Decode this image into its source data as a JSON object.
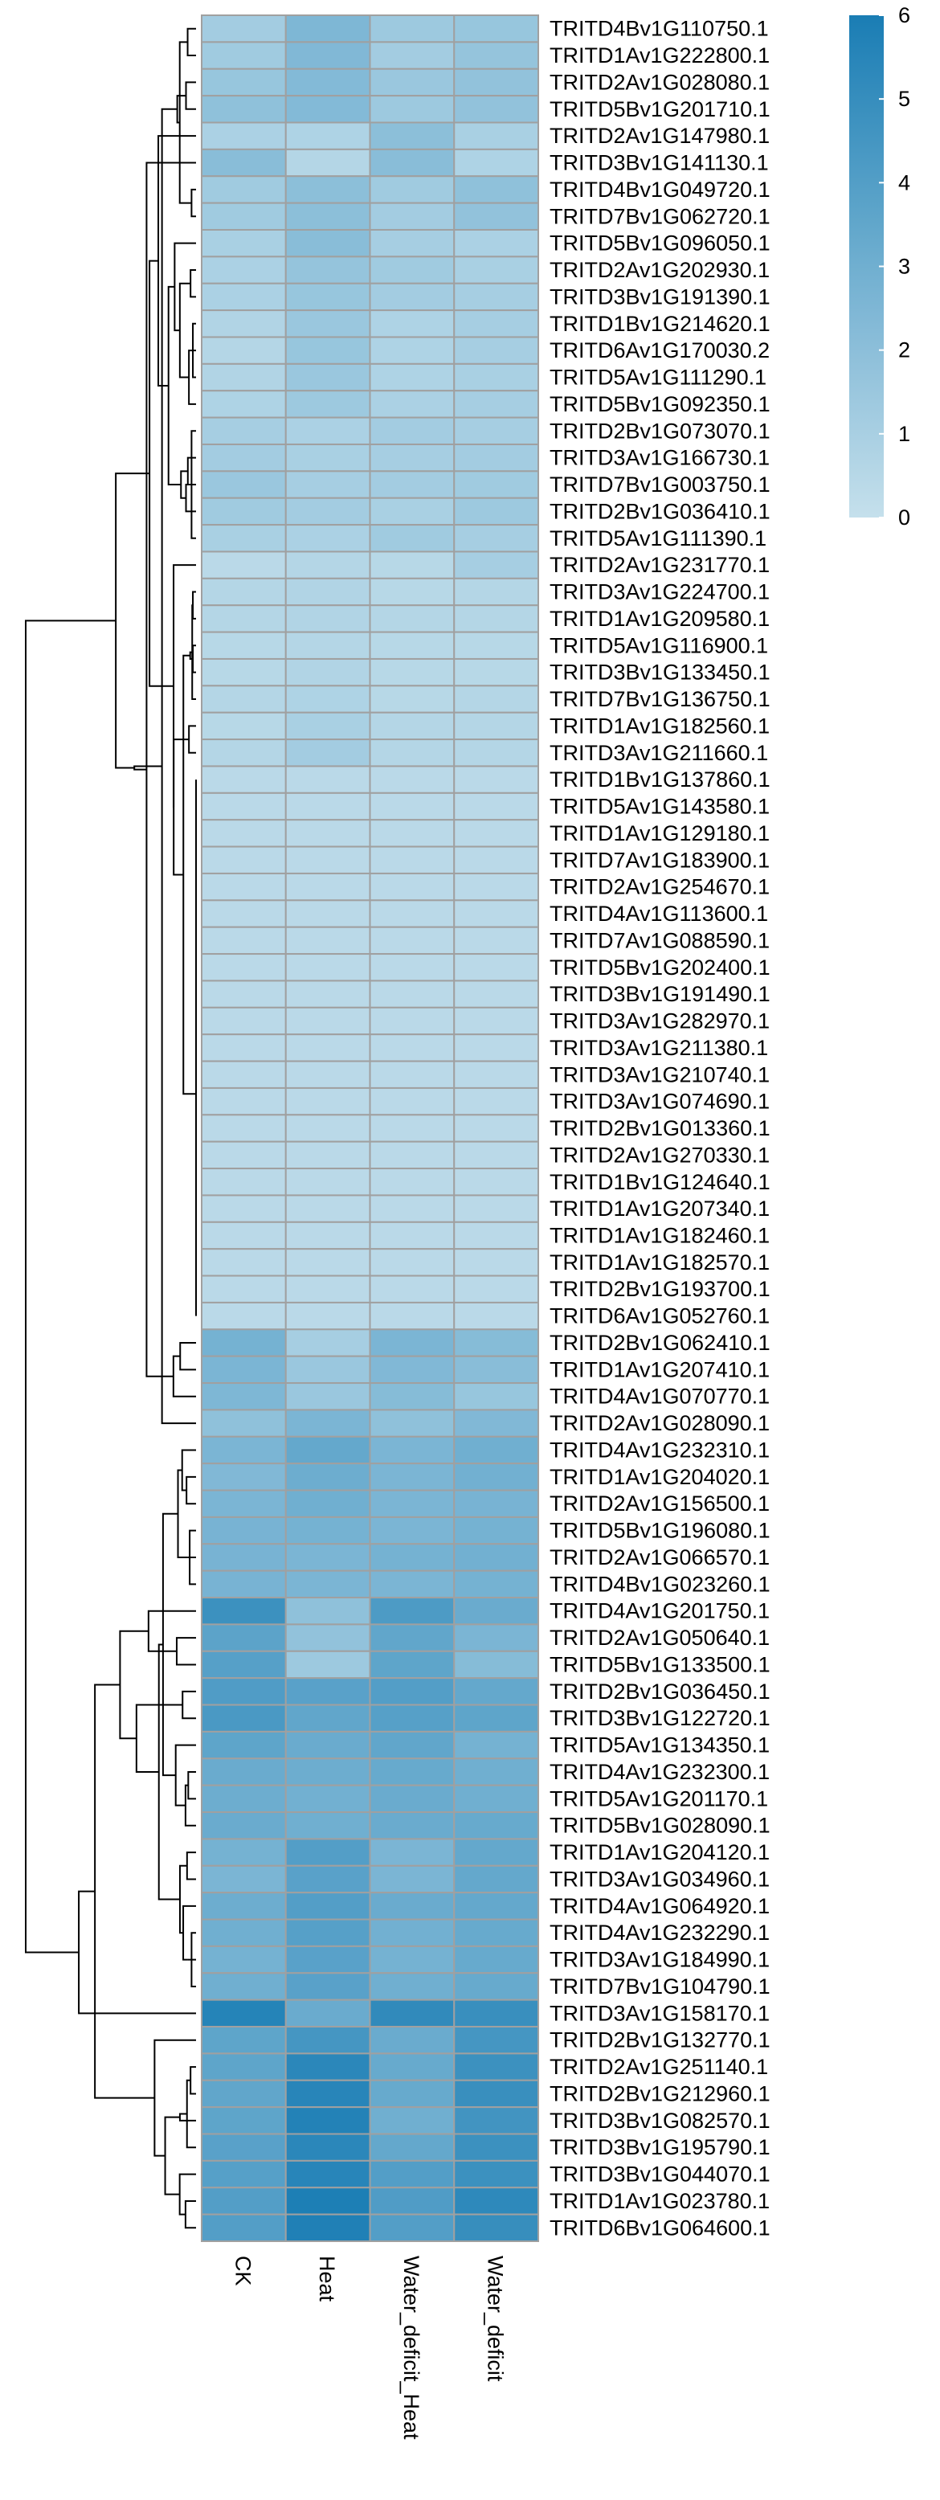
{
  "chart_data": {
    "type": "heatmap",
    "title": "",
    "xlabel": "",
    "ylabel": "",
    "columns": [
      "CK",
      "Heat",
      "Water_deficit_Heat",
      "Water_deficit"
    ],
    "rows": [
      "TRITD4Bv1G110750.1",
      "TRITD1Av1G222800.1",
      "TRITD2Av1G028080.1",
      "TRITD5Bv1G201710.1",
      "TRITD2Av1G147980.1",
      "TRITD3Bv1G141130.1",
      "TRITD4Bv1G049720.1",
      "TRITD7Bv1G062720.1",
      "TRITD5Bv1G096050.1",
      "TRITD2Av1G202930.1",
      "TRITD3Bv1G191390.1",
      "TRITD1Bv1G214620.1",
      "TRITD6Av1G170030.2",
      "TRITD5Av1G111290.1",
      "TRITD5Bv1G092350.1",
      "TRITD2Bv1G073070.1",
      "TRITD3Av1G166730.1",
      "TRITD7Bv1G003750.1",
      "TRITD2Bv1G036410.1",
      "TRITD5Av1G111390.1",
      "TRITD2Av1G231770.1",
      "TRITD3Av1G224700.1",
      "TRITD1Av1G209580.1",
      "TRITD5Av1G116900.1",
      "TRITD3Bv1G133450.1",
      "TRITD7Bv1G136750.1",
      "TRITD1Av1G182560.1",
      "TRITD3Av1G211660.1",
      "TRITD1Bv1G137860.1",
      "TRITD5Av1G143580.1",
      "TRITD1Av1G129180.1",
      "TRITD7Av1G183900.1",
      "TRITD2Av1G254670.1",
      "TRITD4Av1G113600.1",
      "TRITD7Av1G088590.1",
      "TRITD5Bv1G202400.1",
      "TRITD3Bv1G191490.1",
      "TRITD3Av1G282970.1",
      "TRITD3Av1G211380.1",
      "TRITD3Av1G210740.1",
      "TRITD3Av1G074690.1",
      "TRITD2Bv1G013360.1",
      "TRITD2Av1G270330.1",
      "TRITD1Bv1G124640.1",
      "TRITD1Av1G207340.1",
      "TRITD1Av1G182460.1",
      "TRITD1Av1G182570.1",
      "TRITD2Bv1G193700.1",
      "TRITD6Av1G052760.1",
      "TRITD2Bv1G062410.1",
      "TRITD1Av1G207410.1",
      "TRITD4Av1G070770.1",
      "TRITD2Av1G028090.1",
      "TRITD4Av1G232310.1",
      "TRITD1Av1G204020.1",
      "TRITD2Av1G156500.1",
      "TRITD5Bv1G196080.1",
      "TRITD2Av1G066570.1",
      "TRITD4Bv1G023260.1",
      "TRITD4Av1G201750.1",
      "TRITD2Av1G050640.1",
      "TRITD5Bv1G133500.1",
      "TRITD2Bv1G036450.1",
      "TRITD3Bv1G122720.1",
      "TRITD5Av1G134350.1",
      "TRITD4Av1G232300.1",
      "TRITD5Av1G201170.1",
      "TRITD5Bv1G028090.1",
      "TRITD1Av1G204120.1",
      "TRITD3Av1G034960.1",
      "TRITD4Av1G064920.1",
      "TRITD4Av1G232290.1",
      "TRITD3Av1G184990.1",
      "TRITD7Bv1G104790.1",
      "TRITD3Av1G158170.1",
      "TRITD2Bv1G132770.1",
      "TRITD2Av1G251140.1",
      "TRITD2Bv1G212960.1",
      "TRITD3Bv1G082570.1",
      "TRITD3Bv1G195790.1",
      "TRITD3Bv1G044070.1",
      "TRITD1Av1G023780.1",
      "TRITD6Bv1G064600.1"
    ],
    "values": [
      [
        1.2,
        2.5,
        1.4,
        1.6
      ],
      [
        1.3,
        2.4,
        1.2,
        1.7
      ],
      [
        1.6,
        2.3,
        1.5,
        1.8
      ],
      [
        1.9,
        2.3,
        1.4,
        1.8
      ],
      [
        0.9,
        0.8,
        2.0,
        1.0
      ],
      [
        2.1,
        0.6,
        2.1,
        0.8
      ],
      [
        1.3,
        2.0,
        1.3,
        1.9
      ],
      [
        1.3,
        2.0,
        1.2,
        1.8
      ],
      [
        1.0,
        2.1,
        1.1,
        0.9
      ],
      [
        0.9,
        1.7,
        1.3,
        1.0
      ],
      [
        0.9,
        1.6,
        1.2,
        1.1
      ],
      [
        0.7,
        1.5,
        0.8,
        1.1
      ],
      [
        0.6,
        1.6,
        0.8,
        1.1
      ],
      [
        0.7,
        1.5,
        0.8,
        1.0
      ],
      [
        0.8,
        1.4,
        0.9,
        1.1
      ],
      [
        1.1,
        0.9,
        1.2,
        1.1
      ],
      [
        1.2,
        1.0,
        1.1,
        1.2
      ],
      [
        1.5,
        1.1,
        1.2,
        1.3
      ],
      [
        1.3,
        1.2,
        1.0,
        1.4
      ],
      [
        1.0,
        0.9,
        1.3,
        1.1
      ],
      [
        0.4,
        0.6,
        0.5,
        1.1
      ],
      [
        0.6,
        0.7,
        0.5,
        0.6
      ],
      [
        0.6,
        0.7,
        0.6,
        0.6
      ],
      [
        0.5,
        0.6,
        0.5,
        0.5
      ],
      [
        0.5,
        0.7,
        0.5,
        0.5
      ],
      [
        0.6,
        0.8,
        0.5,
        0.6
      ],
      [
        0.5,
        1.0,
        0.6,
        0.6
      ],
      [
        0.6,
        1.2,
        0.6,
        0.6
      ],
      [
        0.4,
        0.4,
        0.4,
        0.4
      ],
      [
        0.4,
        0.4,
        0.4,
        0.4
      ],
      [
        0.4,
        0.4,
        0.4,
        0.4
      ],
      [
        0.4,
        0.4,
        0.4,
        0.4
      ],
      [
        0.4,
        0.4,
        0.4,
        0.4
      ],
      [
        0.4,
        0.4,
        0.4,
        0.4
      ],
      [
        0.4,
        0.4,
        0.4,
        0.4
      ],
      [
        0.4,
        0.4,
        0.4,
        0.4
      ],
      [
        0.4,
        0.4,
        0.4,
        0.4
      ],
      [
        0.4,
        0.4,
        0.4,
        0.4
      ],
      [
        0.4,
        0.4,
        0.4,
        0.4
      ],
      [
        0.4,
        0.4,
        0.4,
        0.4
      ],
      [
        0.4,
        0.4,
        0.4,
        0.4
      ],
      [
        0.4,
        0.4,
        0.4,
        0.4
      ],
      [
        0.4,
        0.4,
        0.4,
        0.4
      ],
      [
        0.4,
        0.4,
        0.4,
        0.4
      ],
      [
        0.4,
        0.4,
        0.4,
        0.4
      ],
      [
        0.4,
        0.4,
        0.4,
        0.4
      ],
      [
        0.4,
        0.4,
        0.4,
        0.4
      ],
      [
        0.4,
        0.4,
        0.4,
        0.4
      ],
      [
        0.4,
        0.4,
        0.4,
        0.4
      ],
      [
        2.8,
        1.1,
        2.6,
        2.2
      ],
      [
        2.6,
        1.5,
        2.4,
        2.1
      ],
      [
        2.5,
        1.5,
        2.2,
        1.6
      ],
      [
        1.9,
        2.6,
        1.9,
        2.4
      ],
      [
        2.6,
        3.4,
        2.6,
        3.0
      ],
      [
        2.4,
        3.1,
        2.6,
        2.9
      ],
      [
        2.6,
        3.0,
        2.6,
        2.7
      ],
      [
        2.7,
        2.8,
        2.6,
        2.8
      ],
      [
        2.7,
        2.6,
        2.8,
        2.9
      ],
      [
        2.7,
        2.6,
        2.6,
        2.8
      ],
      [
        4.8,
        1.9,
        4.2,
        3.2
      ],
      [
        3.7,
        1.8,
        3.5,
        2.6
      ],
      [
        3.9,
        1.4,
        3.6,
        2.2
      ],
      [
        4.1,
        3.8,
        4.0,
        3.4
      ],
      [
        4.3,
        3.5,
        3.9,
        3.6
      ],
      [
        3.6,
        3.2,
        3.5,
        2.8
      ],
      [
        3.2,
        3.1,
        3.3,
        3.0
      ],
      [
        3.1,
        2.9,
        3.2,
        3.0
      ],
      [
        3.2,
        3.0,
        3.2,
        3.3
      ],
      [
        2.8,
        4.0,
        2.6,
        3.4
      ],
      [
        2.6,
        3.8,
        2.6,
        3.4
      ],
      [
        3.1,
        4.0,
        3.2,
        3.4
      ],
      [
        3.0,
        3.9,
        2.9,
        3.3
      ],
      [
        2.8,
        3.8,
        2.8,
        3.3
      ],
      [
        3.0,
        3.8,
        3.0,
        3.3
      ],
      [
        5.6,
        3.2,
        5.2,
        4.9
      ],
      [
        3.6,
        4.5,
        3.2,
        4.5
      ],
      [
        3.6,
        5.4,
        3.3,
        4.8
      ],
      [
        3.5,
        5.5,
        3.3,
        4.9
      ],
      [
        3.6,
        5.7,
        3.0,
        4.6
      ],
      [
        3.8,
        5.4,
        3.4,
        4.8
      ],
      [
        3.9,
        5.5,
        4.0,
        4.8
      ],
      [
        4.0,
        5.9,
        4.1,
        5.3
      ],
      [
        4.0,
        5.8,
        4.0,
        5.0
      ]
    ],
    "colorbar": {
      "ticks": [
        0,
        1,
        2,
        3,
        4,
        5,
        6
      ],
      "min": 0,
      "max": 6,
      "low_color": "#c5e0ec",
      "high_color": "#1a7db4"
    },
    "cell_border_color": "#a0a0a0",
    "dendrogram": "rows"
  }
}
